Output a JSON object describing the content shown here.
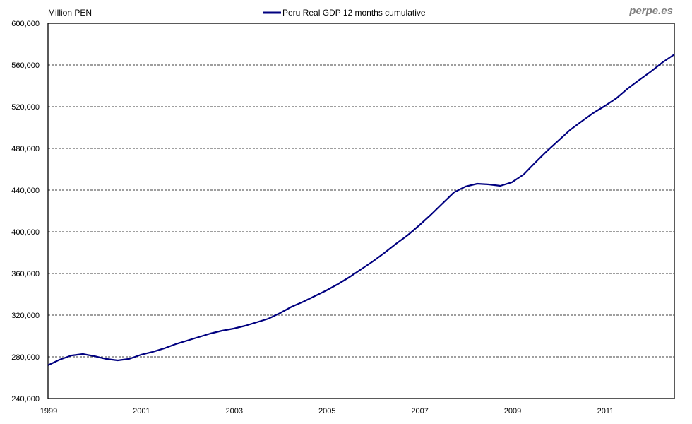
{
  "chart_data": {
    "type": "line",
    "title": "",
    "brand": "perpe.es",
    "ylabel": "Million PEN",
    "xlabel": "",
    "xlim": [
      1999,
      2012.5
    ],
    "ylim": [
      240000,
      600000
    ],
    "grid": "horizontal-dashed",
    "legend_position": "top-center",
    "yticks": [
      240000,
      280000,
      320000,
      360000,
      400000,
      440000,
      480000,
      520000,
      560000,
      600000
    ],
    "ytick_labels": [
      "240,000",
      "280,000",
      "320,000",
      "360,000",
      "400,000",
      "440,000",
      "480,000",
      "520,000",
      "560,000",
      "600,000"
    ],
    "xticks": [
      1999,
      2001,
      2003,
      2005,
      2007,
      2009,
      2011
    ],
    "xtick_labels": [
      "1999",
      "2001",
      "2003",
      "2005",
      "2007",
      "2009",
      "2011"
    ],
    "x_start": 1999,
    "x_step": 0.25,
    "series": [
      {
        "name": "Peru Real GDP 12 months cumulative",
        "color": "#000080",
        "values": [
          271900,
          277300,
          281300,
          282700,
          280700,
          278000,
          276600,
          278000,
          282000,
          284700,
          288100,
          292200,
          295600,
          299000,
          302400,
          305100,
          307100,
          309800,
          313200,
          316600,
          322000,
          328100,
          332900,
          338300,
          343700,
          349800,
          356600,
          364100,
          371500,
          379700,
          388500,
          396600,
          406100,
          416300,
          427100,
          437800,
          443400,
          446100,
          445400,
          444100,
          447500,
          454900,
          466400,
          477300,
          487400,
          497600,
          505800,
          513900,
          520700,
          528100,
          537600,
          545800,
          553900,
          562700,
          570200
        ]
      }
    ]
  }
}
